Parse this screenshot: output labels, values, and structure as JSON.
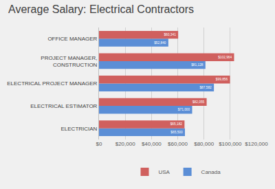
{
  "chart_data": {
    "type": "bar",
    "title": "Average Salary: Electrical Contractors",
    "orientation": "horizontal",
    "categories": [
      "ELECTRICIAN",
      "ELECTRICAL ESTIMATOR",
      "ELECTRICAL PROJECT MANAGER",
      "PROJECT MANAGER, CONSTRUCTION",
      "OFFICE MANAGER"
    ],
    "series": [
      {
        "name": "USA",
        "color": "#d0605e",
        "values": [
          65182,
          82055,
          99856,
          102964,
          60341
        ],
        "value_labels": [
          "$65,182",
          "$82,055",
          "$99,856",
          "$102,964",
          "$60,341"
        ]
      },
      {
        "name": "Canada",
        "color": "#5b8ed6",
        "values": [
          65500,
          71000,
          87582,
          81128,
          52840
        ],
        "value_labels": [
          "$65,500",
          "$71,000",
          "$87,582",
          "$81,128",
          "$52,840"
        ]
      }
    ],
    "xlim": [
      0,
      120000
    ],
    "xticks": [
      {
        "value": 0,
        "label": "$0"
      },
      {
        "value": 20000,
        "label": "$20,000"
      },
      {
        "value": 40000,
        "label": "$40,000"
      },
      {
        "value": 60000,
        "label": "$60,000"
      },
      {
        "value": 80000,
        "label": "$80,000"
      },
      {
        "value": 100000,
        "label": "$100,000"
      },
      {
        "value": 120000,
        "label": "$120,000"
      }
    ],
    "grid": true,
    "legend": "bottom",
    "data_labels": true
  }
}
